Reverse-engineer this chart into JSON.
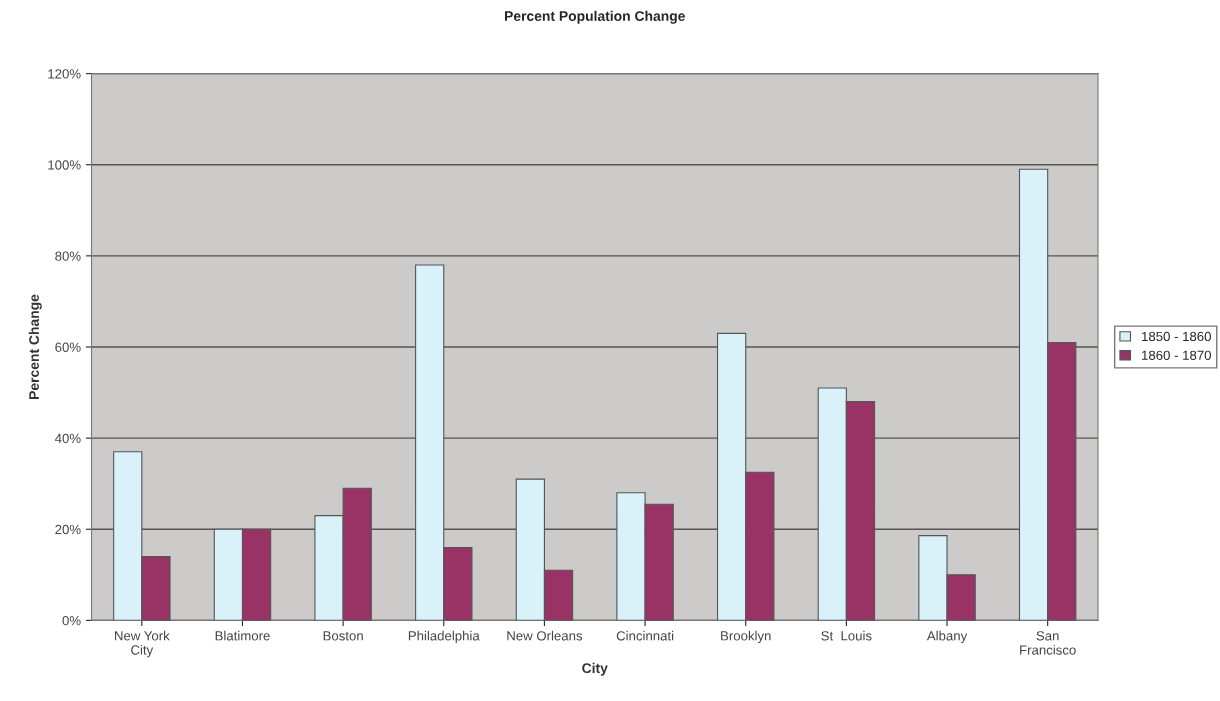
{
  "chart_data": {
    "type": "bar",
    "title": "Percent Population Change",
    "xlabel": "City",
    "ylabel": "Percent Change",
    "categories": [
      "New York\nCity",
      "Blatimore",
      "Boston",
      "Philadelphia",
      "New Orleans",
      "Cincinnati",
      "Brooklyn",
      "St  Louis",
      "Albany",
      "San\nFrancisco"
    ],
    "series": [
      {
        "name": "1850 - 1860",
        "color": "#d9f1f8",
        "values": [
          37,
          20,
          23,
          78,
          31,
          28,
          63,
          51,
          18.6,
          99
        ]
      },
      {
        "name": "1860 - 1870",
        "color": "#993366",
        "values": [
          14,
          20,
          29,
          16,
          11,
          25.5,
          32.5,
          48,
          10,
          61
        ]
      }
    ],
    "ylim": [
      0,
      120
    ],
    "yticks": [
      {
        "value": 0,
        "label": "0%"
      },
      {
        "value": 20,
        "label": "20%"
      },
      {
        "value": 40,
        "label": "40%"
      },
      {
        "value": 60,
        "label": "60%"
      },
      {
        "value": 80,
        "label": "80%"
      },
      {
        "value": 100,
        "label": "100%"
      },
      {
        "value": 120,
        "label": "120%"
      }
    ],
    "grid": "y",
    "legend": "right"
  }
}
